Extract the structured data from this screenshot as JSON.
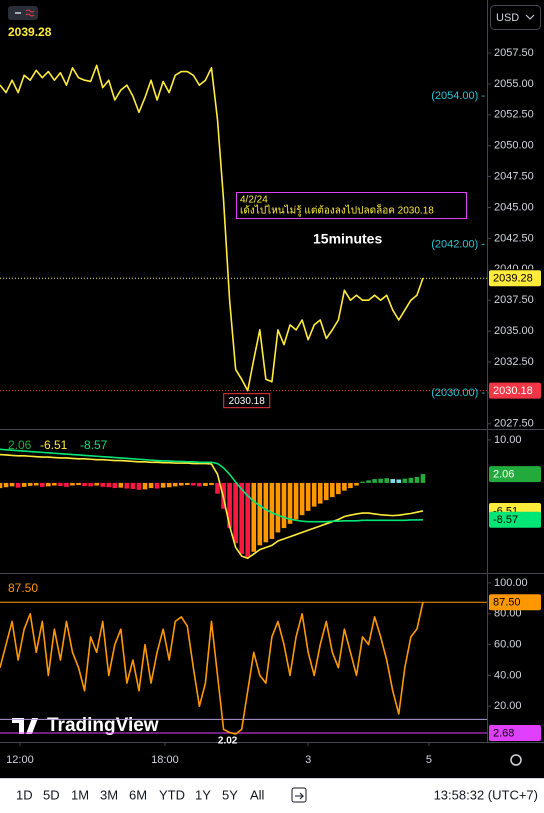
{
  "currency": "USD",
  "logo": "TradingView",
  "toolbar": {
    "ranges": [
      "1D",
      "5D",
      "1M",
      "3M",
      "6M",
      "YTD",
      "1Y",
      "5Y",
      "All"
    ],
    "clock": "13:58:32 (UTC+7)"
  },
  "chart_data": [
    {
      "type": "line",
      "x": [
        0,
        1,
        2,
        3,
        4,
        5,
        6,
        7,
        8,
        9,
        10,
        11,
        12,
        13,
        14,
        15,
        16,
        17,
        18,
        19,
        20,
        21,
        22,
        23,
        24,
        25,
        26,
        27,
        28,
        29,
        30,
        31,
        32,
        33,
        34,
        35,
        36,
        37,
        38,
        39,
        40,
        41,
        42,
        43,
        44,
        45,
        46,
        47,
        48,
        49,
        50,
        51,
        52,
        53,
        54,
        55,
        56,
        57,
        58,
        59,
        60,
        61,
        62,
        63,
        64,
        65,
        66,
        67,
        68,
        69,
        70
      ],
      "xlim": [
        0,
        80.6
      ],
      "ylim": [
        2027.16,
        2061.79
      ],
      "yticks": [
        {
          "value": 2027.5,
          "label": "2027.50"
        },
        {
          "value": 2030,
          "label": "2030.00"
        },
        {
          "value": 2032.5,
          "label": "2032.50"
        },
        {
          "value": 2035,
          "label": "2035.00"
        },
        {
          "value": 2037.5,
          "label": "2037.50"
        },
        {
          "value": 2040,
          "label": "2040.00"
        },
        {
          "value": 2042.5,
          "label": "2042.50"
        },
        {
          "value": 2045,
          "label": "2045.00"
        },
        {
          "value": 2047.5,
          "label": "2047.50"
        },
        {
          "value": 2050,
          "label": "2050.00"
        },
        {
          "value": 2052.5,
          "label": "2052.50"
        },
        {
          "value": 2055,
          "label": "2055.00"
        },
        {
          "value": 2057.5,
          "label": "2057.50"
        }
      ],
      "series": [
        {
          "color": "#ffeb3b",
          "values": [
            2054.9,
            2054.3,
            2055.3,
            2054.3,
            2055.7,
            2055.3,
            2056.1,
            2055.5,
            2056.0,
            2055.3,
            2055.9,
            2054.9,
            2056.3,
            2055.5,
            2055.3,
            2055.2,
            2056.5,
            2054.7,
            2055.3,
            2053.7,
            2054.5,
            2054.9,
            2054.0,
            2052.7,
            2053.9,
            2055.3,
            2053.7,
            2055.2,
            2054.3,
            2055.7,
            2056.0,
            2056.0,
            2055.7,
            2054.9,
            2055.3,
            2056.3,
            2052.1,
            2045.6,
            2037.5,
            2031.9,
            2031.1,
            2030.18,
            2032.7,
            2035.1,
            2031.1,
            2030.9,
            2035.1,
            2033.9,
            2035.5,
            2035.1,
            2035.9,
            2034.3,
            2035.5,
            2035.9,
            2034.4,
            2035.1,
            2035.9,
            2038.3,
            2037.5,
            2037.9,
            2037.5,
            2037.5,
            2037.9,
            2037.5,
            2037.9,
            2036.7,
            2035.9,
            2036.7,
            2037.5,
            2037.9,
            2039.28
          ]
        }
      ],
      "marker_colors": {
        "last": "#ffeb3b",
        "low": "#f23645"
      },
      "annotations": [
        {
          "value": 2054,
          "label": "(2054.00) -"
        },
        {
          "value": 2042,
          "label": "(2042.00) -"
        },
        {
          "value": 2030,
          "label": "(2030.00) -"
        }
      ],
      "annotation_color": "#26c6da",
      "callout": {
        "date": "4/2/24",
        "text": "เด้งไปไหนไม่รู้ แต่ต้องลงไปปลดล็อค 2030.18"
      },
      "caption": "15minutes"
    },
    {
      "type": "bar",
      "x": [
        0,
        1,
        2,
        3,
        4,
        5,
        6,
        7,
        8,
        9,
        10,
        11,
        12,
        13,
        14,
        15,
        16,
        17,
        18,
        19,
        20,
        21,
        22,
        23,
        24,
        25,
        26,
        27,
        28,
        29,
        30,
        31,
        32,
        33,
        34,
        35,
        36,
        37,
        38,
        39,
        40,
        41,
        42,
        43,
        44,
        45,
        46,
        47,
        48,
        49,
        50,
        51,
        52,
        53,
        54,
        55,
        56,
        57,
        58,
        59,
        60,
        61,
        62,
        63,
        64,
        65,
        66,
        67,
        68,
        69,
        70
      ],
      "xlim": [
        0,
        80.6
      ],
      "ylim": [
        -20.7,
        12.3
      ],
      "yticks": [
        {
          "value": 10,
          "label": "10.00"
        }
      ],
      "series": [
        {
          "type": "bar",
          "colors": {
            "pos_rise": "#22ab3c",
            "pos_fall": "#80deea",
            "neg_fall": "#ff1744",
            "neg_rise": "#ff9800"
          },
          "values": [
            -1.2,
            -1.0,
            -0.8,
            -1.1,
            -0.9,
            -0.7,
            -0.6,
            -0.9,
            -0.8,
            -0.6,
            -0.7,
            -0.9,
            -0.6,
            -0.5,
            -0.7,
            -0.8,
            -0.6,
            -0.9,
            -1.0,
            -1.2,
            -1.1,
            -1.3,
            -1.4,
            -1.6,
            -1.5,
            -1.2,
            -1.3,
            -1.1,
            -1.0,
            -0.8,
            -0.6,
            -0.5,
            -0.6,
            -0.8,
            -0.7,
            -0.5,
            -2.5,
            -6.0,
            -10.5,
            -14.0,
            -16.5,
            -17.2,
            -16.0,
            -14.5,
            -13.8,
            -13.0,
            -11.5,
            -10.5,
            -9.5,
            -8.5,
            -7.5,
            -6.5,
            -5.5,
            -4.8,
            -4.0,
            -3.3,
            -2.6,
            -1.8,
            -1.2,
            -0.6,
            0.3,
            0.6,
            0.9,
            1.0,
            1.1,
            0.9,
            0.8,
            1.0,
            1.2,
            1.4,
            2.06
          ]
        },
        {
          "type": "line",
          "color": "#ffeb3b",
          "values": [
            6.6,
            6.5,
            6.4,
            6.3,
            6.3,
            6.2,
            6.1,
            6.0,
            6.0,
            5.9,
            5.8,
            5.8,
            5.7,
            5.6,
            5.6,
            5.5,
            5.4,
            5.4,
            5.3,
            5.2,
            5.2,
            5.1,
            5.0,
            4.9,
            4.9,
            4.8,
            4.8,
            4.7,
            4.7,
            4.6,
            4.6,
            4.6,
            4.5,
            4.5,
            4.5,
            4.4,
            2.0,
            -3.5,
            -10.0,
            -15.0,
            -17.0,
            -17.5,
            -16.5,
            -15.5,
            -15.0,
            -14.5,
            -13.5,
            -13.0,
            -12.5,
            -12.0,
            -11.5,
            -11.0,
            -10.5,
            -10.0,
            -9.5,
            -9.0,
            -8.5,
            -7.8,
            -7.5,
            -7.2,
            -7.0,
            -7.0,
            -7.2,
            -7.4,
            -7.5,
            -7.6,
            -7.5,
            -7.3,
            -7.1,
            -6.8,
            -6.51
          ]
        },
        {
          "type": "line",
          "color": "#00e676",
          "values": [
            7.8,
            7.7,
            7.6,
            7.5,
            7.4,
            7.3,
            7.2,
            7.1,
            7.0,
            6.9,
            6.8,
            6.7,
            6.6,
            6.5,
            6.4,
            6.3,
            6.2,
            6.1,
            6.0,
            5.9,
            5.8,
            5.7,
            5.6,
            5.5,
            5.4,
            5.3,
            5.2,
            5.1,
            5.1,
            5.0,
            5.0,
            4.9,
            4.9,
            4.8,
            4.8,
            4.8,
            4.5,
            3.5,
            2.0,
            0.2,
            -1.5,
            -3.0,
            -4.3,
            -5.3,
            -6.2,
            -6.9,
            -7.5,
            -8.0,
            -8.4,
            -8.7,
            -8.9,
            -9.0,
            -9.0,
            -9.0,
            -9.0,
            -8.9,
            -8.9,
            -8.8,
            -8.8,
            -8.8,
            -8.7,
            -8.7,
            -8.7,
            -8.7,
            -8.7,
            -8.7,
            -8.7,
            -8.7,
            -8.6,
            -8.6,
            -8.57
          ]
        }
      ]
    },
    {
      "type": "line",
      "x": [
        0,
        1,
        2,
        3,
        4,
        5,
        6,
        7,
        8,
        9,
        10,
        11,
        12,
        13,
        14,
        15,
        16,
        17,
        18,
        19,
        20,
        21,
        22,
        23,
        24,
        25,
        26,
        27,
        28,
        29,
        30,
        31,
        32,
        33,
        34,
        35,
        36,
        37,
        38,
        39,
        40,
        41,
        42,
        43,
        44,
        45,
        46,
        47,
        48,
        49,
        50,
        51,
        52,
        53,
        54,
        55,
        56,
        57,
        58,
        59,
        60,
        61,
        62,
        63,
        64,
        65,
        66,
        67,
        68,
        69,
        70
      ],
      "xlim": [
        0,
        80.6
      ],
      "ylim": [
        -1.9,
        105.8
      ],
      "yticks": [
        {
          "value": 20,
          "label": "20.00"
        },
        {
          "value": 40,
          "label": "40.00"
        },
        {
          "value": 60,
          "label": "60.00"
        },
        {
          "value": 80,
          "label": "80.00"
        },
        {
          "value": 100,
          "label": "100.00"
        }
      ],
      "xticks": [
        {
          "value": 3.3,
          "label": "12:00"
        },
        {
          "value": 27.3,
          "label": "18:00"
        },
        {
          "value": 51,
          "label": "3"
        },
        {
          "value": 71,
          "label": "5"
        }
      ],
      "series": [
        {
          "color": "#ff9800",
          "values": [
            45,
            60,
            75,
            50,
            70,
            80,
            55,
            75,
            40,
            70,
            50,
            75,
            55,
            45,
            30,
            65,
            55,
            75,
            40,
            60,
            70,
            35,
            50,
            30,
            60,
            35,
            55,
            70,
            50,
            75,
            78,
            72,
            45,
            20,
            35,
            75,
            40,
            5,
            3,
            2.02,
            5,
            30,
            55,
            40,
            35,
            65,
            75,
            60,
            40,
            65,
            80,
            55,
            40,
            60,
            75,
            55,
            45,
            70,
            55,
            40,
            65,
            60,
            78,
            65,
            50,
            30,
            15,
            45,
            65,
            70,
            87.5
          ]
        }
      ],
      "hlines": [
        {
          "value": 87.5,
          "label": "87.50",
          "color": "#ff9800"
        },
        {
          "value": 2.68,
          "label": "2.68",
          "color": "#e040fb"
        },
        {
          "value": 11.5,
          "color": "#b39ddb"
        }
      ]
    }
  ]
}
